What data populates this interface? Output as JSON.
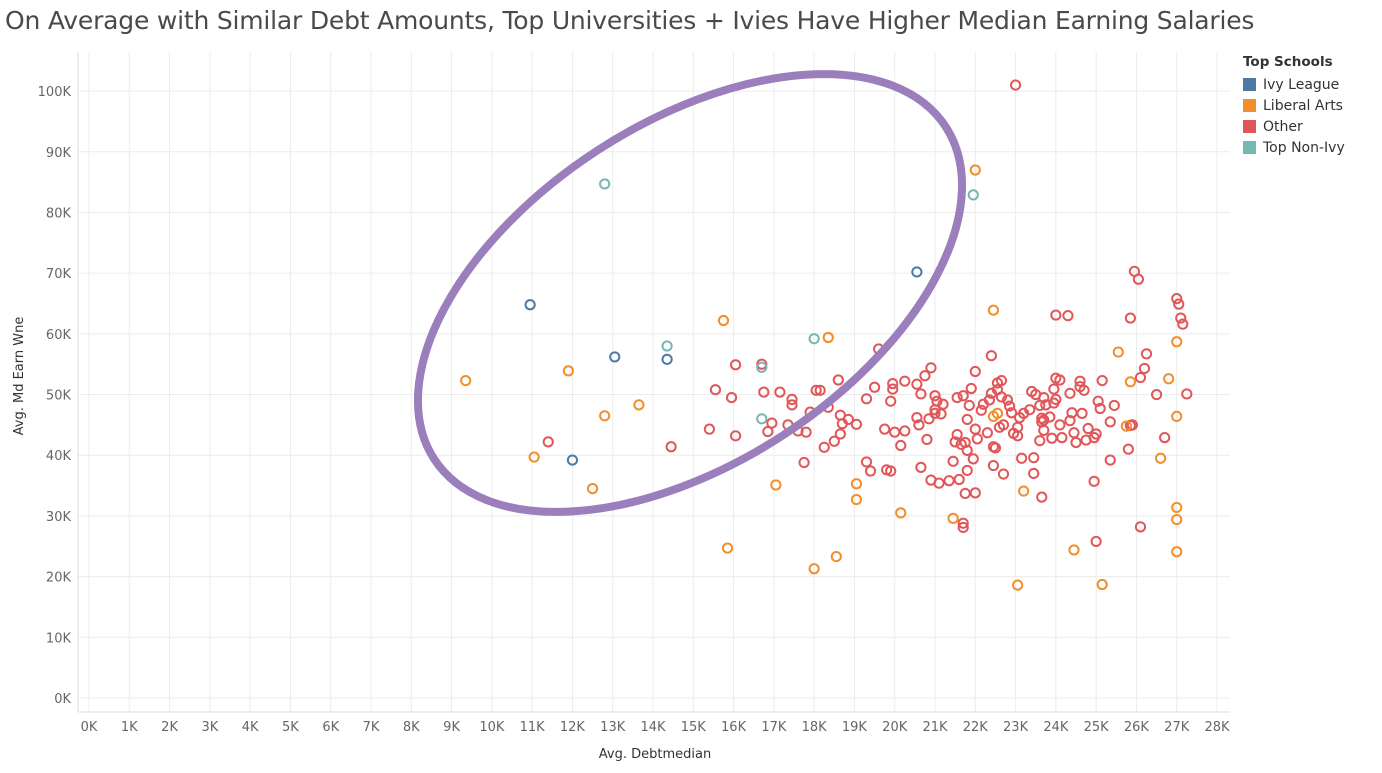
{
  "title": "On Average with Similar Debt Amounts, Top Universities + Ivies Have Higher Median Earning Salaries",
  "legend": {
    "title": "Top Schools",
    "items": [
      {
        "label": "Ivy League",
        "color": "#4e79a7"
      },
      {
        "label": "Liberal Arts",
        "color": "#f28e2b"
      },
      {
        "label": "Other",
        "color": "#e15759"
      },
      {
        "label": "Top Non-Ivy",
        "color": "#76b7b2"
      }
    ]
  },
  "chart_data": {
    "type": "scatter",
    "title": "On Average with Similar Debt Amounts, Top Universities + Ivies Have Higher Median Earning Salaries",
    "xlabel": "Avg. Debtmedian",
    "ylabel": "Avg. Md Earn Wne",
    "xlim": [
      0,
      28500
    ],
    "ylim": [
      -2000,
      106000
    ],
    "x_ticks": [
      "0K",
      "1K",
      "2K",
      "3K",
      "4K",
      "5K",
      "6K",
      "7K",
      "8K",
      "9K",
      "10K",
      "11K",
      "12K",
      "13K",
      "14K",
      "15K",
      "16K",
      "17K",
      "18K",
      "19K",
      "20K",
      "21K",
      "22K",
      "23K",
      "24K",
      "25K",
      "26K",
      "27K",
      "28K"
    ],
    "y_ticks": [
      "0K",
      "10K",
      "20K",
      "30K",
      "40K",
      "50K",
      "60K",
      "70K",
      "80K",
      "90K",
      "100K"
    ],
    "grid": true,
    "legend_position": "right",
    "highlight_ellipse": {
      "center_x": 14500,
      "center_y": 67000,
      "color": "#9b7fbd"
    },
    "series": [
      {
        "name": "Ivy League",
        "color": "#4e79a7",
        "points": [
          [
            10950,
            64800
          ],
          [
            12000,
            39200
          ],
          [
            13050,
            56200
          ],
          [
            14350,
            55800
          ],
          [
            20550,
            70200
          ]
        ]
      },
      {
        "name": "Top Non-Ivy",
        "color": "#76b7b2",
        "points": [
          [
            12800,
            84700
          ],
          [
            14350,
            58000
          ],
          [
            16700,
            54500
          ],
          [
            16700,
            46000
          ],
          [
            18000,
            59200
          ],
          [
            21950,
            82900
          ]
        ]
      },
      {
        "name": "Liberal Arts",
        "color": "#f28e2b",
        "points": [
          [
            9350,
            52300
          ],
          [
            11050,
            39700
          ],
          [
            11900,
            53900
          ],
          [
            12500,
            34500
          ],
          [
            12800,
            46500
          ],
          [
            13650,
            48300
          ],
          [
            15750,
            62200
          ],
          [
            15850,
            24700
          ],
          [
            17050,
            35100
          ],
          [
            18000,
            21300
          ],
          [
            18350,
            59400
          ],
          [
            18550,
            23300
          ],
          [
            19050,
            35300
          ],
          [
            19050,
            32700
          ],
          [
            20150,
            30500
          ],
          [
            21450,
            29600
          ],
          [
            22000,
            87000
          ],
          [
            22450,
            63900
          ],
          [
            22450,
            46400
          ],
          [
            22550,
            46900
          ],
          [
            23050,
            18600
          ],
          [
            23200,
            34100
          ],
          [
            24450,
            24400
          ],
          [
            25150,
            18700
          ],
          [
            25550,
            57000
          ],
          [
            25750,
            44800
          ],
          [
            25850,
            52100
          ],
          [
            26600,
            39500
          ],
          [
            26800,
            52600
          ],
          [
            27000,
            58700
          ],
          [
            27000,
            46400
          ],
          [
            27000,
            31400
          ],
          [
            27000,
            29400
          ],
          [
            27000,
            24100
          ]
        ]
      },
      {
        "name": "Other",
        "color": "#e15759",
        "points": [
          [
            11400,
            42200
          ],
          [
            14450,
            41400
          ],
          [
            15400,
            44300
          ],
          [
            15550,
            50800
          ],
          [
            15950,
            49500
          ],
          [
            16050,
            43200
          ],
          [
            16050,
            54900
          ],
          [
            16700,
            55000
          ],
          [
            16750,
            50400
          ],
          [
            16850,
            43900
          ],
          [
            16950,
            45300
          ],
          [
            17150,
            50400
          ],
          [
            17350,
            45000
          ],
          [
            17450,
            48300
          ],
          [
            17450,
            49200
          ],
          [
            17600,
            44000
          ],
          [
            17750,
            38800
          ],
          [
            17800,
            43800
          ],
          [
            17900,
            47100
          ],
          [
            18050,
            50700
          ],
          [
            18150,
            50700
          ],
          [
            18250,
            41300
          ],
          [
            18350,
            47900
          ],
          [
            18500,
            42300
          ],
          [
            18600,
            52400
          ],
          [
            18650,
            43500
          ],
          [
            18650,
            46600
          ],
          [
            18700,
            45200
          ],
          [
            18850,
            45900
          ],
          [
            19050,
            45100
          ],
          [
            19300,
            38900
          ],
          [
            19300,
            49300
          ],
          [
            19400,
            37400
          ],
          [
            19500,
            51200
          ],
          [
            19600,
            57500
          ],
          [
            19750,
            44300
          ],
          [
            19800,
            37600
          ],
          [
            19900,
            37400
          ],
          [
            19900,
            48900
          ],
          [
            19950,
            51800
          ],
          [
            19950,
            50900
          ],
          [
            20000,
            43800
          ],
          [
            20150,
            41600
          ],
          [
            20250,
            52200
          ],
          [
            20250,
            44000
          ],
          [
            20550,
            46200
          ],
          [
            20550,
            51700
          ],
          [
            20600,
            45000
          ],
          [
            20650,
            50100
          ],
          [
            20650,
            38000
          ],
          [
            20750,
            53100
          ],
          [
            20800,
            42600
          ],
          [
            20850,
            46000
          ],
          [
            20900,
            54400
          ],
          [
            20900,
            35900
          ],
          [
            21000,
            49800
          ],
          [
            21000,
            47500
          ],
          [
            21000,
            46900
          ],
          [
            21050,
            48900
          ],
          [
            21100,
            35400
          ],
          [
            21150,
            46800
          ],
          [
            21200,
            48400
          ],
          [
            21350,
            35800
          ],
          [
            21450,
            39000
          ],
          [
            21500,
            42200
          ],
          [
            21550,
            43400
          ],
          [
            21550,
            49500
          ],
          [
            21600,
            36000
          ],
          [
            21650,
            41800
          ],
          [
            21700,
            49800
          ],
          [
            21700,
            28100
          ],
          [
            21700,
            28800
          ],
          [
            21750,
            33700
          ],
          [
            21750,
            42100
          ],
          [
            21800,
            40800
          ],
          [
            21800,
            37500
          ],
          [
            21800,
            45900
          ],
          [
            21850,
            48200
          ],
          [
            21900,
            51000
          ],
          [
            21950,
            39400
          ],
          [
            22000,
            33800
          ],
          [
            22000,
            44300
          ],
          [
            22000,
            53800
          ],
          [
            22050,
            42700
          ],
          [
            22150,
            47400
          ],
          [
            22200,
            48400
          ],
          [
            22300,
            43700
          ],
          [
            22350,
            49100
          ],
          [
            22400,
            56400
          ],
          [
            22400,
            50200
          ],
          [
            22450,
            41400
          ],
          [
            22450,
            38300
          ],
          [
            22500,
            41200
          ],
          [
            22550,
            50800
          ],
          [
            22550,
            51900
          ],
          [
            22600,
            44600
          ],
          [
            22650,
            52300
          ],
          [
            22650,
            49600
          ],
          [
            22700,
            36900
          ],
          [
            22700,
            45000
          ],
          [
            22800,
            49100
          ],
          [
            22850,
            48100
          ],
          [
            22900,
            47000
          ],
          [
            22950,
            43600
          ],
          [
            23000,
            101000
          ],
          [
            23050,
            44600
          ],
          [
            23050,
            43200
          ],
          [
            23100,
            46200
          ],
          [
            23150,
            39500
          ],
          [
            23200,
            46900
          ],
          [
            23350,
            47500
          ],
          [
            23400,
            50500
          ],
          [
            23450,
            37000
          ],
          [
            23450,
            39600
          ],
          [
            23500,
            50000
          ],
          [
            23600,
            42400
          ],
          [
            23600,
            48200
          ],
          [
            23650,
            33100
          ],
          [
            23700,
            49500
          ],
          [
            23650,
            46100
          ],
          [
            23650,
            45500
          ],
          [
            23700,
            44100
          ],
          [
            23700,
            45800
          ],
          [
            23750,
            48300
          ],
          [
            23850,
            46300
          ],
          [
            23900,
            42800
          ],
          [
            23950,
            48600
          ],
          [
            23950,
            50900
          ],
          [
            24000,
            49200
          ],
          [
            24000,
            63100
          ],
          [
            24000,
            52700
          ],
          [
            24100,
            52400
          ],
          [
            24100,
            45000
          ],
          [
            24150,
            42900
          ],
          [
            24300,
            63000
          ],
          [
            24350,
            45700
          ],
          [
            24350,
            50200
          ],
          [
            24400,
            47000
          ],
          [
            24450,
            43700
          ],
          [
            24500,
            42100
          ],
          [
            24600,
            52200
          ],
          [
            24600,
            51300
          ],
          [
            24650,
            46900
          ],
          [
            24700,
            50700
          ],
          [
            24750,
            42500
          ],
          [
            24800,
            44400
          ],
          [
            24950,
            42900
          ],
          [
            24950,
            35700
          ],
          [
            25000,
            43500
          ],
          [
            25000,
            25800
          ],
          [
            25050,
            48900
          ],
          [
            25100,
            47700
          ],
          [
            25150,
            52300
          ],
          [
            25350,
            45500
          ],
          [
            25350,
            39200
          ],
          [
            25450,
            48200
          ],
          [
            25800,
            41000
          ],
          [
            25850,
            62600
          ],
          [
            25850,
            44900
          ],
          [
            25900,
            45000
          ],
          [
            25950,
            70300
          ],
          [
            26050,
            69000
          ],
          [
            26100,
            52800
          ],
          [
            26200,
            54300
          ],
          [
            26250,
            56700
          ],
          [
            26100,
            28200
          ],
          [
            26500,
            50000
          ],
          [
            26700,
            42900
          ],
          [
            27000,
            65800
          ],
          [
            27050,
            64900
          ],
          [
            27100,
            62600
          ],
          [
            27150,
            61600
          ],
          [
            27250,
            50100
          ]
        ]
      }
    ]
  }
}
